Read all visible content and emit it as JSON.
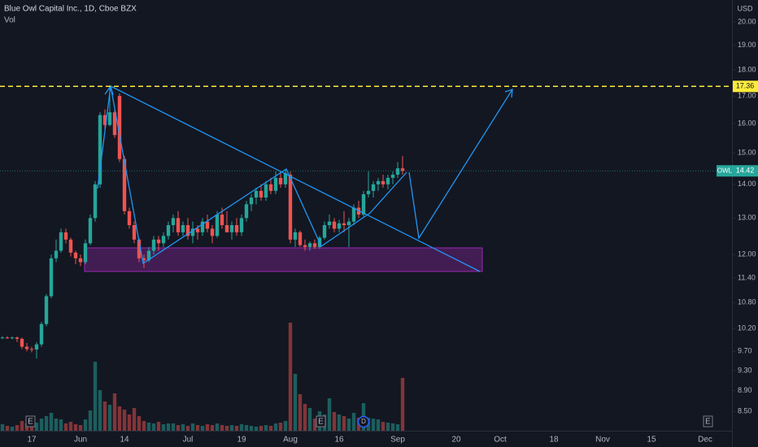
{
  "chart_data": {
    "type": "candlestick",
    "title": "Blue Owl Capital Inc., 1D, Cboe BZX",
    "volume_label": "Vol",
    "currency": "USD",
    "symbol": "OWL",
    "last_price": 14.42,
    "alert_level": 17.36,
    "log_scale": true,
    "up_color": "#26a69a",
    "down_color": "#ef5350",
    "alert_color": "#ffeb3b",
    "ylim": [
      8.148,
      20.988
    ],
    "yticks": [
      {
        "value": 20,
        "label": "20.00"
      },
      {
        "value": 19,
        "label": "19.00"
      },
      {
        "value": 18,
        "label": "18.00"
      },
      {
        "value": 17,
        "label": "17.00"
      },
      {
        "value": 16,
        "label": "16.00"
      },
      {
        "value": 15,
        "label": "15.00"
      },
      {
        "value": 14,
        "label": "14.00"
      },
      {
        "value": 13,
        "label": "13.00"
      },
      {
        "value": 12,
        "label": "12.00"
      },
      {
        "value": 11.4,
        "label": "11.40"
      },
      {
        "value": 10.8,
        "label": "10.80"
      },
      {
        "value": 10.2,
        "label": "10.20"
      },
      {
        "value": 9.7,
        "label": "9.70"
      },
      {
        "value": 9.3,
        "label": "9.30"
      },
      {
        "value": 8.9,
        "label": "8.90"
      },
      {
        "value": 8.5,
        "label": "8.50"
      }
    ],
    "volume_lim": [
      0,
      14
    ],
    "events": [
      {
        "label": "E"
      },
      {
        "label": "E"
      },
      {
        "label": "D"
      },
      {
        "label": "E"
      }
    ],
    "categories": [
      null,
      null,
      null,
      null,
      null,
      null,
      "17",
      null,
      null,
      null,
      null,
      null,
      null,
      null,
      null,
      null,
      "Jun",
      null,
      null,
      null,
      null,
      null,
      null,
      null,
      null,
      "14",
      null,
      null,
      null,
      null,
      null,
      null,
      null,
      null,
      null,
      null,
      null,
      null,
      "Jul",
      null,
      null,
      null,
      null,
      null,
      null,
      null,
      null,
      null,
      null,
      "19",
      null,
      null,
      null,
      null,
      null,
      null,
      null,
      null,
      null,
      "Aug",
      null,
      null,
      null,
      null,
      null,
      null,
      null,
      null,
      null,
      "16",
      null,
      null,
      null,
      null,
      null,
      null,
      null,
      null,
      null,
      null,
      null,
      "Sep",
      null,
      null,
      null,
      null,
      null,
      null,
      null,
      null,
      null,
      null,
      null,
      "20",
      null,
      null,
      null,
      null,
      null,
      null,
      null,
      null,
      "Oct",
      null,
      null,
      null,
      null,
      null,
      null,
      null,
      null,
      null,
      null,
      "18",
      null,
      null,
      null,
      null,
      null,
      null,
      null,
      null,
      null,
      "Nov",
      null,
      null,
      null,
      null,
      null,
      null,
      null,
      null,
      null,
      "15",
      null,
      null,
      null,
      null,
      null,
      null,
      null,
      null,
      null,
      null,
      "Dec",
      null,
      null,
      null,
      null,
      null
    ],
    "open": [
      10.0,
      10.0,
      9.99,
      10.0,
      9.97,
      9.8,
      9.75,
      9.74,
      9.85,
      10.3,
      10.95,
      11.9,
      12.1,
      12.6,
      12.4,
      12.05,
      11.9,
      11.8,
      12.3,
      13.0,
      14.0,
      16.3,
      15.95,
      16.4,
      17.0,
      14.8,
      13.2,
      12.8,
      12.4,
      11.9,
      11.85,
      12.1,
      12.4,
      12.3,
      12.5,
      12.8,
      13.0,
      12.6,
      12.8,
      12.5,
      12.7,
      12.6,
      12.9,
      12.7,
      12.5,
      13.1,
      12.8,
      12.6,
      12.8,
      12.6,
      13.0,
      13.4,
      13.6,
      13.8,
      13.6,
      14.0,
      13.8,
      14.2,
      14.0,
      14.3,
      12.4,
      12.6,
      12.25,
      12.2,
      12.3,
      12.2,
      12.45,
      12.8,
      12.9,
      12.7,
      12.85,
      12.8,
      12.9,
      13.3,
      13.1,
      13.7,
      13.8,
      14.0,
      14.1,
      14.0,
      14.2,
      14.3,
      14.5,
      null,
      null,
      null,
      null,
      null,
      null,
      null,
      null,
      null,
      null,
      null,
      null,
      null,
      null,
      null,
      null,
      null,
      null,
      null,
      null,
      null,
      null,
      null,
      null,
      null,
      null,
      null,
      null,
      null,
      null,
      null,
      null,
      null,
      null,
      null,
      null,
      null,
      null,
      null,
      null,
      null,
      null,
      null,
      null,
      null,
      null,
      null,
      null,
      null,
      null,
      null,
      null,
      null,
      null,
      null,
      null,
      null,
      null,
      null,
      null,
      null,
      null,
      null,
      null,
      null,
      null,
      null
    ],
    "high": [
      10.03,
      10.03,
      10.02,
      10.02,
      10.0,
      9.88,
      9.8,
      9.9,
      10.35,
      11.0,
      12.0,
      12.4,
      12.7,
      12.7,
      12.45,
      12.1,
      12.0,
      12.4,
      13.1,
      14.1,
      16.4,
      16.5,
      17.36,
      16.6,
      17.1,
      14.9,
      13.3,
      12.9,
      12.45,
      12.0,
      12.2,
      12.5,
      12.5,
      12.6,
      12.9,
      13.1,
      13.2,
      12.9,
      13.0,
      12.9,
      12.8,
      13.0,
      13.1,
      12.8,
      13.2,
      13.3,
      13.2,
      12.9,
      13.0,
      13.1,
      13.5,
      13.7,
      13.9,
      14.0,
      14.1,
      14.2,
      14.4,
      14.4,
      14.45,
      14.4,
      12.7,
      12.65,
      12.4,
      12.35,
      12.4,
      12.5,
      12.9,
      13.1,
      13.0,
      12.95,
      13.2,
      13.0,
      13.4,
      13.5,
      13.8,
      14.4,
      14.1,
      14.2,
      14.3,
      14.3,
      14.4,
      14.7,
      14.9,
      null,
      null,
      null,
      null,
      null,
      null,
      null,
      null,
      null,
      null,
      null,
      null,
      null,
      null,
      null,
      null,
      null,
      null,
      null,
      null,
      null,
      null,
      null,
      null,
      null,
      null,
      null,
      null,
      null,
      null,
      null,
      null,
      null,
      null,
      null,
      null,
      null,
      null,
      null,
      null,
      null,
      null,
      null,
      null,
      null,
      null,
      null,
      null,
      null,
      null,
      null,
      null,
      null,
      null,
      null,
      null,
      null,
      null,
      null,
      null,
      null,
      null,
      null,
      null,
      null,
      null,
      null
    ],
    "low": [
      9.97,
      9.97,
      9.96,
      9.9,
      9.75,
      9.7,
      9.68,
      9.55,
      9.8,
      10.25,
      10.9,
      11.8,
      12.05,
      12.3,
      11.95,
      11.75,
      11.7,
      11.75,
      12.25,
      12.9,
      13.9,
      15.8,
      15.9,
      15.5,
      14.7,
      13.1,
      12.7,
      12.3,
      11.8,
      11.65,
      11.8,
      12.0,
      12.1,
      12.2,
      12.4,
      12.6,
      12.5,
      12.5,
      12.4,
      12.3,
      12.4,
      12.5,
      12.6,
      12.3,
      12.45,
      12.7,
      12.6,
      12.4,
      12.5,
      12.5,
      12.9,
      13.2,
      13.4,
      13.5,
      13.5,
      13.7,
      13.7,
      13.9,
      13.9,
      12.3,
      12.2,
      12.2,
      12.1,
      12.1,
      12.15,
      12.15,
      12.4,
      12.7,
      12.6,
      12.6,
      12.6,
      12.2,
      12.8,
      13.0,
      13.05,
      13.6,
      13.6,
      13.8,
      13.9,
      13.85,
      14.0,
      14.2,
      14.3,
      null,
      null,
      null,
      null,
      null,
      null,
      null,
      null,
      null,
      null,
      null,
      null,
      null,
      null,
      null,
      null,
      null,
      null,
      null,
      null,
      null,
      null,
      null,
      null,
      null,
      null,
      null,
      null,
      null,
      null,
      null,
      null,
      null,
      null,
      null,
      null,
      null,
      null,
      null,
      null,
      null,
      null,
      null,
      null,
      null,
      null,
      null,
      null,
      null,
      null,
      null,
      null,
      null,
      null,
      null,
      null,
      null,
      null,
      null,
      null,
      null,
      null,
      null,
      null,
      null,
      null,
      null
    ],
    "close": [
      10.0,
      9.99,
      10.0,
      9.97,
      9.8,
      9.75,
      9.74,
      9.85,
      10.3,
      10.95,
      11.9,
      12.1,
      12.6,
      12.4,
      12.05,
      11.9,
      11.8,
      12.3,
      13.0,
      14.0,
      16.3,
      15.95,
      16.4,
      15.6,
      14.8,
      13.2,
      12.8,
      12.4,
      11.9,
      11.85,
      12.1,
      12.4,
      12.3,
      12.5,
      12.8,
      13.0,
      12.6,
      12.8,
      12.5,
      12.7,
      12.6,
      12.9,
      12.7,
      12.5,
      13.1,
      12.8,
      12.6,
      12.8,
      12.6,
      13.0,
      13.4,
      13.6,
      13.8,
      13.6,
      14.0,
      13.8,
      14.2,
      14.0,
      14.35,
      12.4,
      12.6,
      12.25,
      12.2,
      12.3,
      12.2,
      12.45,
      12.8,
      12.9,
      12.7,
      12.85,
      12.8,
      12.9,
      13.3,
      13.1,
      13.7,
      13.8,
      14.0,
      14.1,
      14.0,
      14.2,
      14.3,
      14.5,
      14.42,
      null,
      null,
      null,
      null,
      null,
      null,
      null,
      null,
      null,
      null,
      null,
      null,
      null,
      null,
      null,
      null,
      null,
      null,
      null,
      null,
      null,
      null,
      null,
      null,
      null,
      null,
      null,
      null,
      null,
      null,
      null,
      null,
      null,
      null,
      null,
      null,
      null,
      null,
      null,
      null,
      null,
      null,
      null,
      null,
      null,
      null,
      null,
      null,
      null,
      null,
      null,
      null,
      null,
      null,
      null,
      null,
      null,
      null,
      null,
      null,
      null,
      null,
      null,
      null,
      null,
      null,
      null
    ],
    "volume": [
      0.8,
      0.6,
      0.5,
      0.7,
      1.2,
      0.9,
      0.8,
      1.0,
      1.5,
      1.8,
      2.2,
      1.5,
      1.4,
      0.9,
      1.1,
      0.8,
      0.7,
      1.4,
      2.5,
      8.5,
      5.0,
      3.6,
      3.2,
      4.6,
      3.0,
      2.6,
      2.0,
      2.8,
      1.8,
      1.2,
      1.0,
      0.9,
      1.1,
      0.8,
      0.9,
      0.9,
      0.7,
      0.8,
      0.6,
      0.9,
      0.7,
      0.6,
      0.8,
      0.7,
      0.9,
      0.7,
      0.6,
      0.7,
      0.6,
      0.8,
      0.7,
      0.6,
      0.5,
      0.6,
      0.7,
      0.6,
      0.9,
      1.0,
      1.2,
      13.3,
      7.0,
      4.5,
      3.3,
      2.8,
      1.5,
      2.4,
      2.0,
      4.0,
      2.3,
      2.0,
      1.8,
      1.5,
      2.2,
      1.6,
      3.4,
      1.6,
      1.5,
      1.4,
      1.1,
      1.0,
      0.9,
      0.8,
      6.5,
      null,
      null,
      null,
      null,
      null,
      null,
      null,
      null,
      null,
      null,
      null,
      null,
      null,
      null,
      null,
      null,
      null,
      null,
      null,
      null,
      null,
      null,
      null,
      null,
      null,
      null,
      null,
      null,
      null,
      null,
      null,
      null,
      null,
      null,
      null,
      null,
      null,
      null,
      null,
      null,
      null,
      null,
      null,
      null,
      null,
      null,
      null,
      null,
      null,
      null,
      null,
      null,
      null,
      null,
      null,
      null,
      null,
      null,
      null,
      null,
      null,
      null,
      null,
      null,
      null,
      null,
      null
    ]
  }
}
